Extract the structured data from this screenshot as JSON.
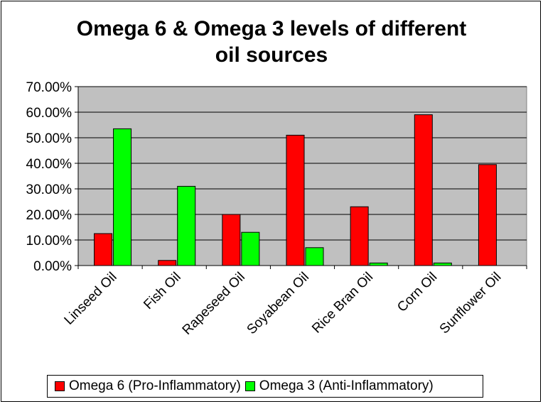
{
  "chart_data": {
    "type": "bar",
    "title": "Omega 6 & Omega 3 levels of different oil sources",
    "title_lines": [
      "Omega 6 & Omega 3 levels of different",
      "oil sources"
    ],
    "categories": [
      "Linseed Oil",
      "Fish Oil",
      "Rapeseed Oil",
      "Soyabean Oil",
      "Rice Bran Oil",
      "Corn Oil",
      "Sunflower Oil"
    ],
    "series": [
      {
        "name": "Omega 6 (Pro-Inflammatory)",
        "color": "#ff0000",
        "values": [
          12.5,
          2.0,
          20.0,
          51.0,
          23.0,
          59.0,
          39.5
        ]
      },
      {
        "name": "Omega 3 (Anti-Inflammatory)",
        "color": "#00ff00",
        "values": [
          53.5,
          31.0,
          13.0,
          7.0,
          1.0,
          1.0,
          0.0
        ]
      }
    ],
    "ylim": [
      0,
      70
    ],
    "yticks": [
      "0.00%",
      "10.00%",
      "20.00%",
      "30.00%",
      "40.00%",
      "50.00%",
      "60.00%",
      "70.00%"
    ],
    "plot_background": "#c0c0c0",
    "grid": true,
    "legend_position": "bottom"
  }
}
